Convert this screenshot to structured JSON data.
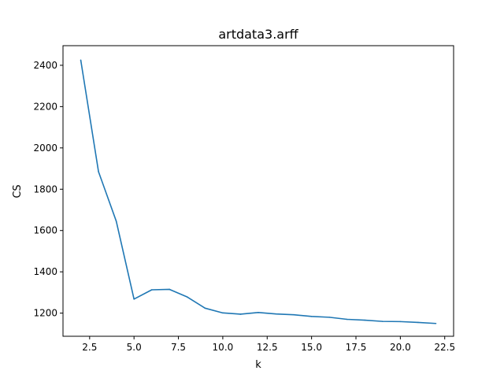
{
  "chart_data": {
    "type": "line",
    "title": "artdata3.arff",
    "xlabel": "k",
    "ylabel": "CS",
    "xlim": [
      1.0,
      23.0
    ],
    "ylim": [
      1088,
      2495
    ],
    "xticks": [
      2.5,
      5.0,
      7.5,
      10.0,
      12.5,
      15.0,
      17.5,
      20.0,
      22.5
    ],
    "xtick_labels": [
      "2.5",
      "5.0",
      "7.5",
      "10.0",
      "12.5",
      "15.0",
      "17.5",
      "20.0",
      "22.5"
    ],
    "yticks": [
      1200,
      1400,
      1600,
      1800,
      2000,
      2200,
      2400
    ],
    "ytick_labels": [
      "1200",
      "1400",
      "1600",
      "1800",
      "2000",
      "2200",
      "2400"
    ],
    "grid": false,
    "series": [
      {
        "color": "#1f77b4",
        "x": [
          2,
          3,
          4,
          5,
          6,
          7,
          8,
          9,
          10,
          11,
          12,
          13,
          14,
          15,
          16,
          17,
          18,
          19,
          20,
          21,
          22
        ],
        "y": [
          2425,
          1885,
          1645,
          1268,
          1313,
          1315,
          1278,
          1224,
          1201,
          1195,
          1203,
          1196,
          1192,
          1184,
          1180,
          1170,
          1166,
          1160,
          1159,
          1155,
          1150
        ]
      }
    ]
  }
}
